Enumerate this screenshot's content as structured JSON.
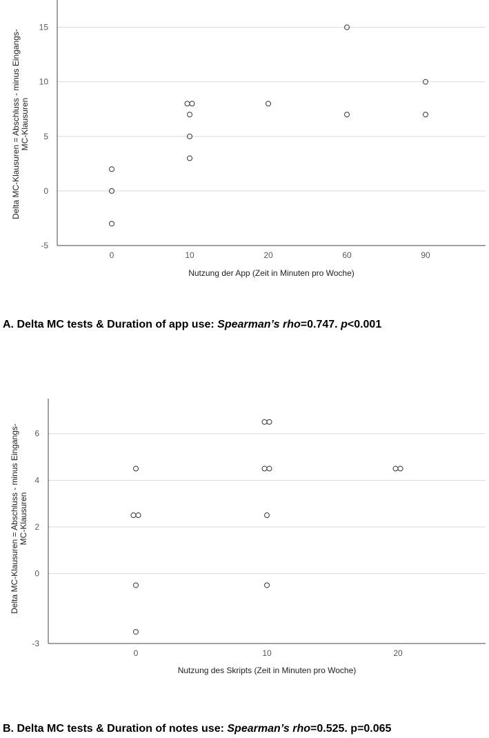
{
  "chart_data": [
    {
      "type": "scatter",
      "xlabel": "Nutzung der App (Zeit in Minuten pro Woche)",
      "ylabel_lines": [
        "Delta MC-Klausuren = Abschluss - minus Eingangs-",
        "MC-Klausuren"
      ],
      "x_categories": [
        "0",
        "10",
        "20",
        "60",
        "90"
      ],
      "y_ticks": [
        -5,
        0,
        5,
        10,
        15
      ],
      "ylim": [
        -5,
        17.5
      ],
      "grid": "horizontal",
      "points": [
        {
          "x": "0",
          "y": 2
        },
        {
          "x": "0",
          "y": 0
        },
        {
          "x": "0",
          "y": -3
        },
        {
          "x": "10",
          "y": 8
        },
        {
          "x": "10",
          "y": 8
        },
        {
          "x": "10",
          "y": 7
        },
        {
          "x": "10",
          "y": 5
        },
        {
          "x": "10",
          "y": 3
        },
        {
          "x": "20",
          "y": 8
        },
        {
          "x": "60",
          "y": 15
        },
        {
          "x": "60",
          "y": 7
        },
        {
          "x": "90",
          "y": 10
        },
        {
          "x": "90",
          "y": 7
        }
      ],
      "caption": {
        "prefix": "A.  Delta MC tests & Duration of app use: ",
        "stat_name": "Spearman’s rho",
        "stat_value": "=0.747.  ",
        "p_name": "p",
        "p_value": "<0.001"
      }
    },
    {
      "type": "scatter",
      "xlabel": "Nutzung des Skripts (Zeit in Minuten pro Woche)",
      "ylabel_lines": [
        "Delta MC-Klausuren = Abschluss - minus Eingangs-",
        "MC-Klausuren"
      ],
      "x_categories": [
        "0",
        "10",
        "20"
      ],
      "y_ticks": [
        -3,
        0,
        2,
        4,
        6
      ],
      "ylim": [
        -3,
        7.5
      ],
      "grid": "horizontal",
      "points": [
        {
          "x": "0",
          "y": 4.5
        },
        {
          "x": "0",
          "y": 2.5
        },
        {
          "x": "0",
          "y": 2.5
        },
        {
          "x": "0",
          "y": -0.5
        },
        {
          "x": "0",
          "y": -2.5
        },
        {
          "x": "10",
          "y": 6.5
        },
        {
          "x": "10",
          "y": 6.5
        },
        {
          "x": "10",
          "y": 4.5
        },
        {
          "x": "10",
          "y": 4.5
        },
        {
          "x": "10",
          "y": 2.5
        },
        {
          "x": "10",
          "y": -0.5
        },
        {
          "x": "20",
          "y": 4.5
        },
        {
          "x": "20",
          "y": 4.5
        }
      ],
      "caption": {
        "prefix": "B.  Delta MC tests & Duration of notes use: ",
        "stat_name": "Spearman’s rho",
        "stat_value": "=0.525. p=0.065",
        "p_name": "",
        "p_value": ""
      }
    }
  ]
}
